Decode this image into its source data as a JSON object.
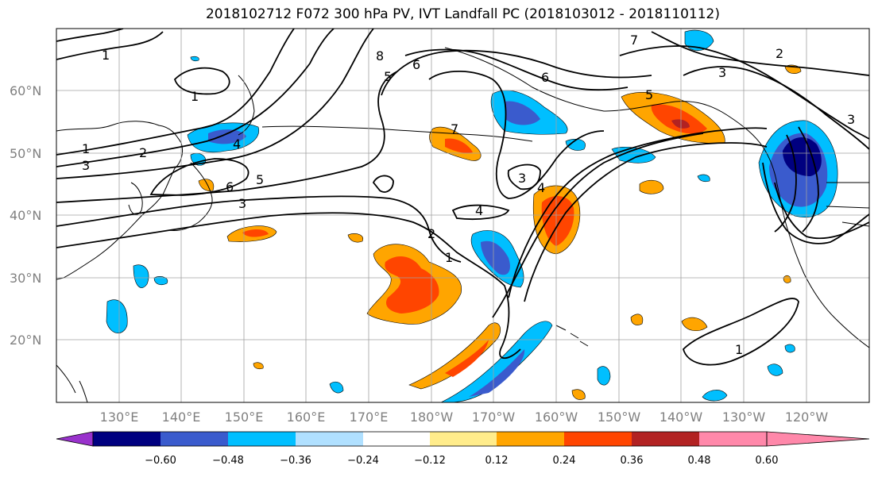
{
  "title": "2018102712 F072 300 hPa PV, IVT Landfall PC (2018103012 - 2018110112)",
  "lat_labels": [
    "60°N",
    "50°N",
    "40°N",
    "30°N",
    "20°N"
  ],
  "lon_labels": [
    "130°E",
    "140°E",
    "150°E",
    "160°E",
    "170°E",
    "180°W",
    "170°W",
    "160°W",
    "150°W",
    "140°W",
    "130°W",
    "120°W"
  ],
  "colorbar": {
    "tick_labels": [
      "−0.60",
      "−0.48",
      "−0.36",
      "−0.24",
      "−0.12",
      "0.12",
      "0.24",
      "0.36",
      "0.48",
      "0.60"
    ],
    "colors": [
      "#9932cc",
      "#000080",
      "#3a5bcd",
      "#00bfff",
      "#b0e0ff",
      "#ffffff",
      "#ffec8b",
      "#ffa500",
      "#ff4500",
      "#b22222",
      "#ff88aa"
    ]
  },
  "contour_labels": [
    "1",
    "1",
    "2",
    "3",
    "4",
    "5",
    "6",
    "6",
    "7",
    "8",
    "5",
    "3",
    "4",
    "2",
    "1",
    "4",
    "3",
    "5",
    "6",
    "7",
    "3",
    "3",
    "2",
    "1",
    "1"
  ],
  "map": {
    "ocean_color": "#ffffff",
    "coast_color": "#000000",
    "contour_color": "#000000",
    "grid_color": "#a0a0a0"
  }
}
